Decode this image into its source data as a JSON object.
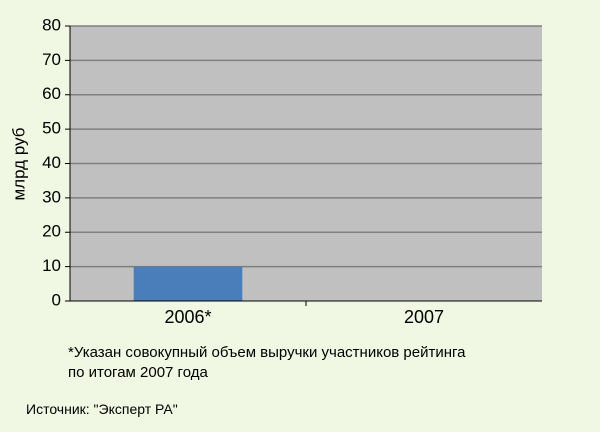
{
  "chart_data": {
    "type": "bar",
    "categories": [
      "2006*",
      "2007"
    ],
    "series": [
      {
        "values": [
          10,
          0
        ]
      }
    ],
    "ylabel": "млрд руб",
    "xlabel": "",
    "ylim": [
      0,
      80
    ],
    "yticks": [
      0,
      10,
      20,
      30,
      40,
      50,
      60,
      70,
      80
    ],
    "grid": true,
    "legend": "none",
    "colors": {
      "bar": "#4a7ebb",
      "plot_bg": "#c0c0c0",
      "gridline": "#7f7f7f",
      "page_bg": "#f0f8e3"
    }
  },
  "footnote": "*Указан совокупный объем выручки участников рейтинга\nпо итогам 2007 года",
  "source": "Источник: \"Эксперт РА\""
}
